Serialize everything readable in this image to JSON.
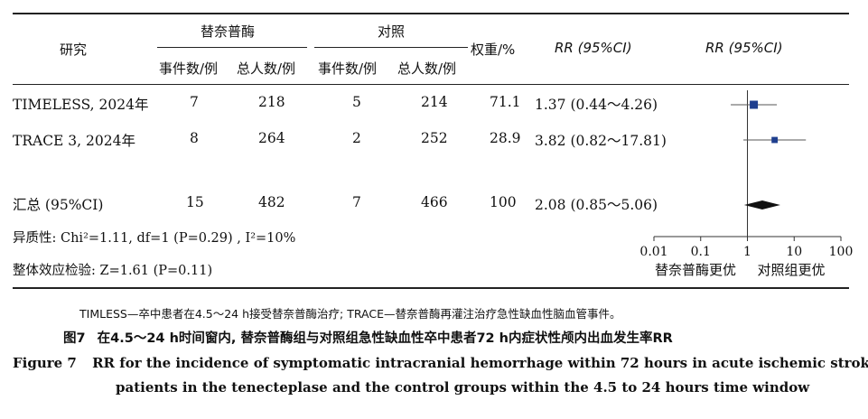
{
  "table": {
    "headers": {
      "study": "研究",
      "treatment_group": "替奈普酶",
      "control_group": "对照",
      "events": "事件数/例",
      "total": "总人数/例",
      "weight": "权重/%",
      "rr_ci": "RR (95%CI)",
      "rr_plot": "RR (95%CI)"
    },
    "rows": [
      {
        "study": "TIMELESS, 2024年",
        "t_events": "7",
        "t_total": "218",
        "c_events": "5",
        "c_total": "214",
        "weight": "71.1",
        "rr_text": "1.37 (0.44～4.26)"
      },
      {
        "study": "TRACE 3, 2024年",
        "t_events": "8",
        "t_total": "264",
        "c_events": "2",
        "c_total": "252",
        "weight": "28.9",
        "rr_text": "3.82 (0.82～17.81)"
      }
    ],
    "pooled": {
      "study": "汇总 (95%CI)",
      "t_events": "15",
      "t_total": "482",
      "c_events": "7",
      "c_total": "466",
      "weight": "100",
      "rr_text": "2.08 (0.85～5.06)"
    },
    "heterogeneity": "异质性: Chi²=1.11, df=1 (P=0.29) , I²=10%",
    "overall_effect": "整体效应检验: Z=1.61 (P=0.11)"
  },
  "chart_data": {
    "type": "scatter",
    "scale": "log",
    "xlim": [
      0.01,
      100
    ],
    "ticks": [
      "0.01",
      "0.1",
      "1",
      "10",
      "100"
    ],
    "reference": 1,
    "favours_left": "替奈普酶更优",
    "favours_right": "对照组更优",
    "studies": [
      {
        "rr": 1.37,
        "lo": 0.44,
        "hi": 4.26,
        "weight": 71.1
      },
      {
        "rr": 3.82,
        "lo": 0.82,
        "hi": 17.81,
        "weight": 28.9
      }
    ],
    "pooled": {
      "rr": 2.08,
      "lo": 0.85,
      "hi": 5.06
    },
    "marker_color": "#1f3f8f"
  },
  "notes": {
    "abbrev": "TIMLESS—卒中患者在4.5～24 h接受替奈普酶治疗; TRACE—替奈普酶再灌注治疗急性缺血性脑血管事件。",
    "caption_cn_label": "图7",
    "caption_cn": "在4.5～24 h时间窗内, 替奈普酶组与对照组急性缺血性卒中患者72 h内症状性颅内出血发生率RR",
    "caption_en_label": "Figure 7",
    "caption_en_line1": "RR for the incidence of symptomatic intracranial hemorrhage within 72 hours in acute ischemic stroke",
    "caption_en_line2": "patients in the tenecteplase and the control groups within the 4.5 to 24 hours time window"
  }
}
